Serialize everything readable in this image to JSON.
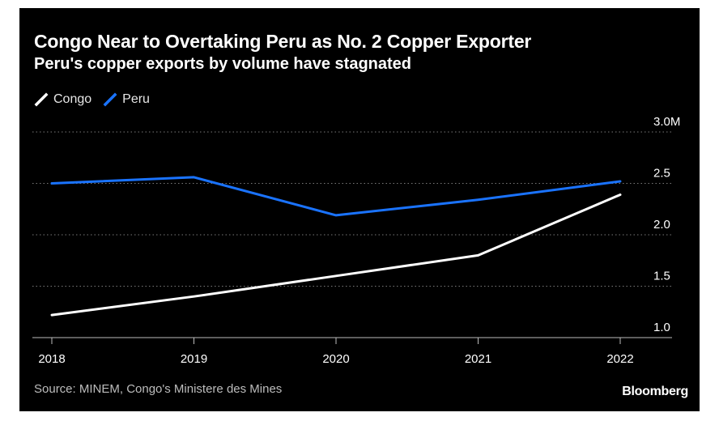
{
  "chart_data": {
    "type": "line",
    "title": "Congo Near to Overtaking Peru as No. 2 Copper Exporter",
    "subtitle": "Peru's copper exports by volume have stagnated",
    "x": [
      "2018",
      "2019",
      "2020",
      "2021",
      "2022"
    ],
    "series": [
      {
        "name": "Congo",
        "color": "#ffffff",
        "values": [
          1.22,
          1.4,
          1.6,
          1.8,
          2.39
        ]
      },
      {
        "name": "Peru",
        "color": "#1a73ff",
        "values": [
          2.5,
          2.56,
          2.19,
          2.34,
          2.52
        ]
      }
    ],
    "ylim": [
      1.0,
      3.0
    ],
    "yticks": [
      1.0,
      1.5,
      2.0,
      2.5,
      3.0
    ],
    "ytick_labels": [
      "1.0",
      "1.5",
      "2.0",
      "2.5",
      "3.0M"
    ],
    "grid": true,
    "legend": "top-left",
    "background": "#000000"
  },
  "footer": {
    "source": "Source: MINEM, Congo's Ministere des Mines",
    "brand": "Bloomberg"
  }
}
